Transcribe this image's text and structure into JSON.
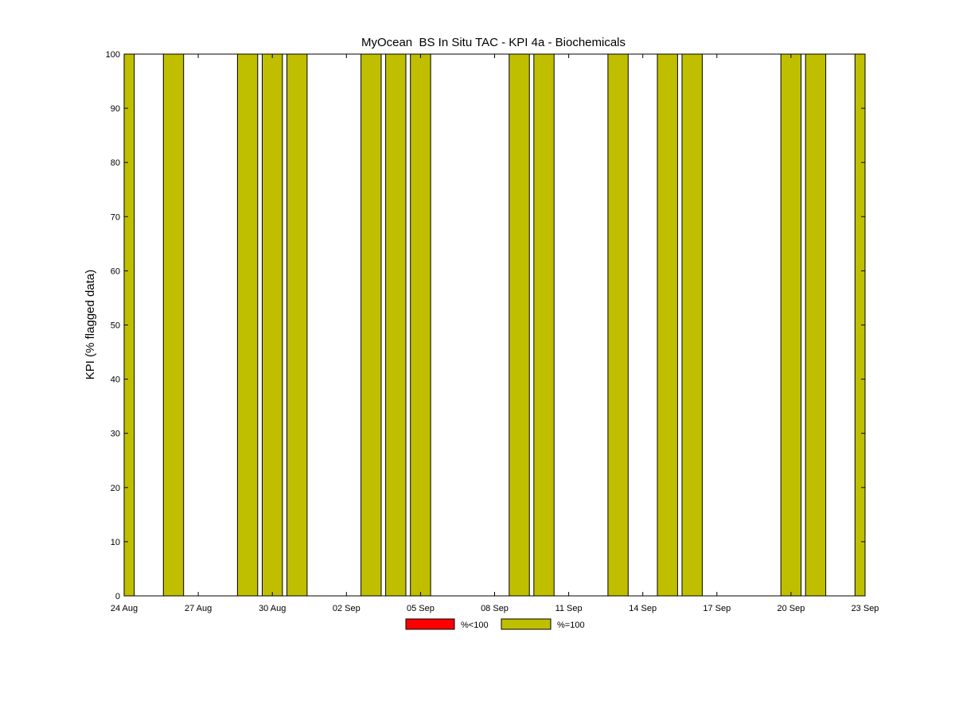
{
  "chart_data": {
    "type": "bar",
    "title": "MyOcean  BS In Situ TAC - KPI 4a - Biochemicals",
    "xlabel": "",
    "ylabel": "KPI (% flagged data)",
    "ylim": [
      0,
      100
    ],
    "yticks": [
      0,
      10,
      20,
      30,
      40,
      50,
      60,
      70,
      80,
      90,
      100
    ],
    "xrange": [
      "2013-08-24",
      "2013-09-23"
    ],
    "xticks": [
      "24 Aug",
      "27 Aug",
      "30 Aug",
      "02 Sep",
      "05 Sep",
      "08 Sep",
      "11 Sep",
      "14 Sep",
      "17 Sep",
      "20 Sep",
      "23 Sep"
    ],
    "grid": false,
    "legend_position": "bottom",
    "legend": [
      {
        "label": "%<100",
        "color": "#ff0000"
      },
      {
        "label": "%=100",
        "color": "#bfbf00"
      }
    ],
    "series": [
      {
        "name": "%=100",
        "color": "#bfbf00",
        "x": [
          "24 Aug",
          "26 Aug",
          "29 Aug",
          "30 Aug",
          "31 Aug",
          "03 Sep",
          "04 Sep",
          "05 Sep",
          "09 Sep",
          "10 Sep",
          "13 Sep",
          "15 Sep",
          "16 Sep",
          "20 Sep",
          "21 Sep",
          "23 Sep"
        ],
        "values": [
          100,
          100,
          100,
          100,
          100,
          100,
          100,
          100,
          100,
          100,
          100,
          100,
          100,
          100,
          100,
          100
        ]
      }
    ]
  }
}
